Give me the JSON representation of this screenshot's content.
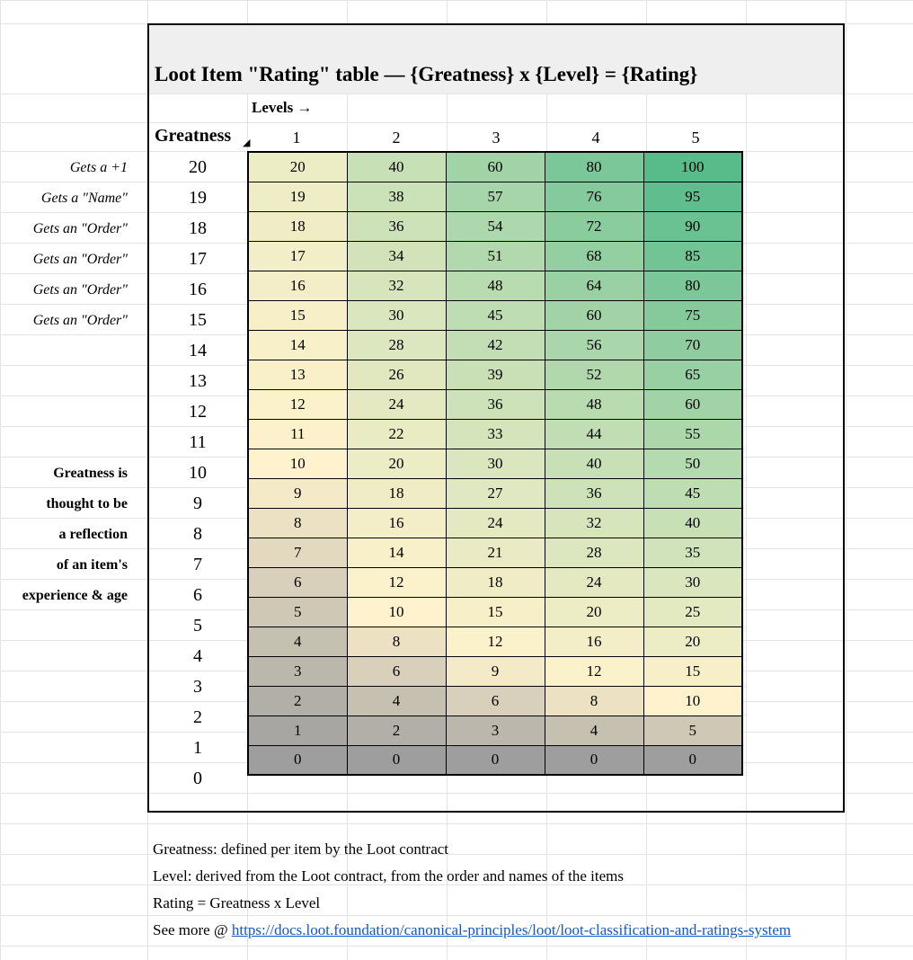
{
  "title": "Loot Item \"Rating\" table — {Greatness} x {Level} = {Rating}",
  "levels_label": "Levels →",
  "greatness_label": "Greatness",
  "levels": [
    "1",
    "2",
    "3",
    "4",
    "5"
  ],
  "rows": [
    {
      "greatness": "20",
      "note": "Gets a +1",
      "values": [
        "20",
        "40",
        "60",
        "80",
        "100"
      ]
    },
    {
      "greatness": "19",
      "note": "Gets a \"Name\"",
      "values": [
        "19",
        "38",
        "57",
        "76",
        "95"
      ]
    },
    {
      "greatness": "18",
      "note": "Gets an \"Order\"",
      "values": [
        "18",
        "36",
        "54",
        "72",
        "90"
      ]
    },
    {
      "greatness": "17",
      "note": "Gets an \"Order\"",
      "values": [
        "17",
        "34",
        "51",
        "68",
        "85"
      ]
    },
    {
      "greatness": "16",
      "note": "Gets an \"Order\"",
      "values": [
        "16",
        "32",
        "48",
        "64",
        "80"
      ]
    },
    {
      "greatness": "15",
      "note": "Gets an \"Order\"",
      "values": [
        "15",
        "30",
        "45",
        "60",
        "75"
      ]
    },
    {
      "greatness": "14",
      "note": "",
      "values": [
        "14",
        "28",
        "42",
        "56",
        "70"
      ]
    },
    {
      "greatness": "13",
      "note": "",
      "values": [
        "13",
        "26",
        "39",
        "52",
        "65"
      ]
    },
    {
      "greatness": "12",
      "note": "",
      "values": [
        "12",
        "24",
        "36",
        "48",
        "60"
      ]
    },
    {
      "greatness": "11",
      "note": "",
      "values": [
        "11",
        "22",
        "33",
        "44",
        "55"
      ]
    },
    {
      "greatness": "10",
      "note": "Greatness is",
      "values": [
        "10",
        "20",
        "30",
        "40",
        "50"
      ]
    },
    {
      "greatness": "9",
      "note": "thought to be",
      "values": [
        "9",
        "18",
        "27",
        "36",
        "45"
      ]
    },
    {
      "greatness": "8",
      "note": "a reflection",
      "values": [
        "8",
        "16",
        "24",
        "32",
        "40"
      ]
    },
    {
      "greatness": "7",
      "note": "of an item's",
      "values": [
        "7",
        "14",
        "21",
        "28",
        "35"
      ]
    },
    {
      "greatness": "6",
      "note": "experience & age",
      "values": [
        "6",
        "12",
        "18",
        "24",
        "30"
      ]
    },
    {
      "greatness": "5",
      "note": "",
      "values": [
        "5",
        "10",
        "15",
        "20",
        "25"
      ]
    },
    {
      "greatness": "4",
      "note": "",
      "values": [
        "4",
        "8",
        "12",
        "16",
        "20"
      ]
    },
    {
      "greatness": "3",
      "note": "",
      "values": [
        "3",
        "6",
        "9",
        "12",
        "15"
      ]
    },
    {
      "greatness": "2",
      "note": "",
      "values": [
        "2",
        "4",
        "6",
        "8",
        "10"
      ]
    },
    {
      "greatness": "1",
      "note": "",
      "values": [
        "1",
        "2",
        "3",
        "4",
        "5"
      ]
    },
    {
      "greatness": "0",
      "note": "",
      "values": [
        "0",
        "0",
        "0",
        "0",
        "0"
      ]
    }
  ],
  "footer": {
    "greatness_def": "Greatness: defined per item by the Loot contract",
    "level_def": "Level: derived from the Loot contract, from the order and names of the items",
    "rating_def": "Rating = Greatness x Level",
    "see_more_prefix": "See more @ ",
    "link_text": "https://docs.loot.foundation/canonical-principles/loot/loot-classification-and-ratings-system"
  },
  "colors": {
    "min": "#9e9e9e",
    "mid": "#fff2cc",
    "max": "#57bb8a",
    "title_band": "#efefef",
    "link": "#1155cc"
  }
}
